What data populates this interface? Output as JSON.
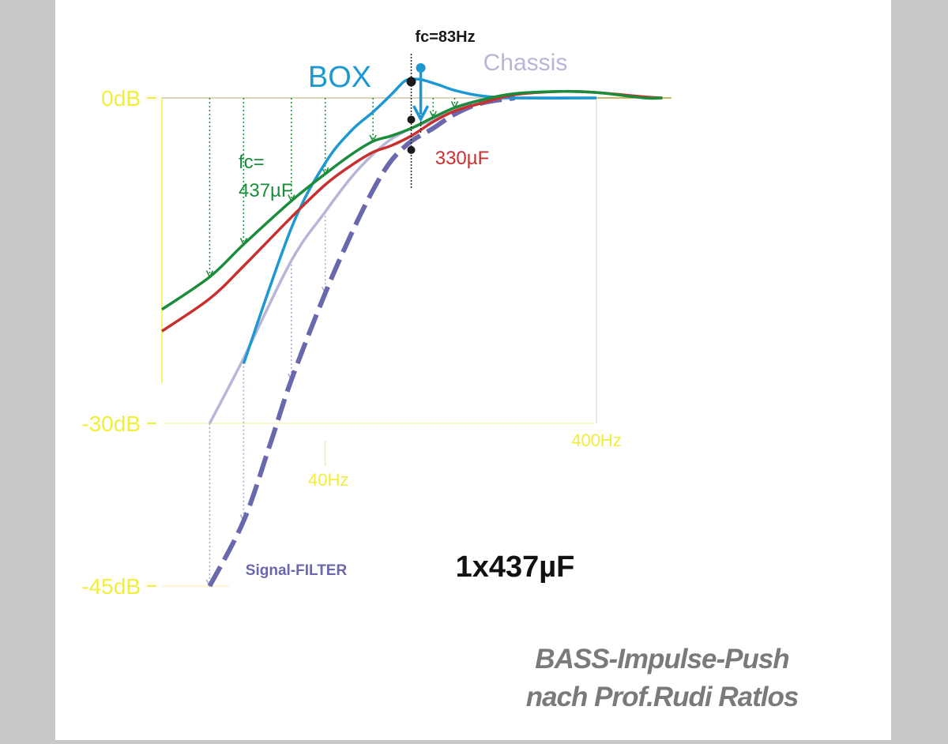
{
  "chart_data": {
    "type": "line",
    "title": "1x437µF",
    "footer": [
      "BASS-Impulse-Push",
      "nach Prof.Rudi Ratlos"
    ],
    "x_scale": "log",
    "xlim_hz": [
      10,
      400
    ],
    "ylim_db": [
      -45,
      0
    ],
    "y_ticks": [
      {
        "value": 0,
        "label": "0dB"
      },
      {
        "value": -30,
        "label": "-30dB"
      },
      {
        "value": -45,
        "label": "-45dB"
      }
    ],
    "x_ticks": [
      {
        "value": 40,
        "label": "40Hz"
      },
      {
        "value": 400,
        "label": "400Hz"
      }
    ],
    "series": [
      {
        "id": "box",
        "name": "BOX",
        "color": "#1e98d2",
        "style": "solid",
        "points": [
          [
            20,
            -24.5
          ],
          [
            30,
            -12
          ],
          [
            40,
            -6
          ],
          [
            50,
            -3
          ],
          [
            60,
            -1.3
          ],
          [
            70,
            0.3
          ],
          [
            78,
            1.5
          ],
          [
            83,
            1.7
          ],
          [
            90,
            1.7
          ],
          [
            105,
            1.2
          ],
          [
            120,
            0.7
          ],
          [
            150,
            0.2
          ],
          [
            200,
            0
          ],
          [
            400,
            0
          ]
        ]
      },
      {
        "id": "chassis",
        "name": "Chassis",
        "color": "#b8b6d6",
        "style": "solid",
        "points": [
          [
            15,
            -30
          ],
          [
            20,
            -24
          ],
          [
            30,
            -15
          ],
          [
            40,
            -10.5
          ],
          [
            50,
            -7.3
          ],
          [
            60,
            -5.2
          ],
          [
            70,
            -3.8
          ],
          [
            83,
            -2.8
          ],
          [
            100,
            -2
          ],
          [
            120,
            -1.2
          ],
          [
            150,
            -0.4
          ],
          [
            200,
            0
          ],
          [
            400,
            0
          ]
        ]
      },
      {
        "id": "filter",
        "name": "Signal-FILTER",
        "color": "#6a68ac",
        "style": "dashed",
        "points": [
          [
            15,
            -45
          ],
          [
            20,
            -39
          ],
          [
            25,
            -32
          ],
          [
            30,
            -26
          ],
          [
            40,
            -18
          ],
          [
            50,
            -12.5
          ],
          [
            60,
            -8.5
          ],
          [
            70,
            -5.8
          ],
          [
            83,
            -4
          ],
          [
            100,
            -2.8
          ],
          [
            120,
            -1.5
          ],
          [
            150,
            -0.5
          ],
          [
            200,
            0
          ]
        ]
      },
      {
        "id": "cap330",
        "name": "330µF",
        "color": "#c83030",
        "style": "solid",
        "points": [
          [
            10,
            -21.5
          ],
          [
            15,
            -18.5
          ],
          [
            20,
            -15.5
          ],
          [
            30,
            -11
          ],
          [
            40,
            -8
          ],
          [
            50,
            -6.2
          ],
          [
            60,
            -5
          ],
          [
            70,
            -4.4
          ],
          [
            83,
            -3.5
          ],
          [
            100,
            -2.2
          ],
          [
            120,
            -1.2
          ],
          [
            150,
            -0.5
          ],
          [
            200,
            0.3
          ],
          [
            300,
            0.6
          ],
          [
            400,
            0.5
          ],
          [
            600,
            0.1
          ],
          [
            700,
            0
          ]
        ]
      },
      {
        "id": "cap437",
        "name": "fc= 437µF",
        "color": "#1a8c3c",
        "style": "solid",
        "points": [
          [
            10,
            -19.5
          ],
          [
            15,
            -16.5
          ],
          [
            20,
            -13.5
          ],
          [
            30,
            -9.5
          ],
          [
            40,
            -7
          ],
          [
            50,
            -5.2
          ],
          [
            60,
            -4
          ],
          [
            70,
            -3.5
          ],
          [
            83,
            -2.8
          ],
          [
            100,
            -1.8
          ],
          [
            120,
            -0.9
          ],
          [
            150,
            -0.2
          ],
          [
            200,
            0.4
          ],
          [
            300,
            0.6
          ],
          [
            400,
            0.5
          ],
          [
            600,
            0
          ],
          [
            700,
            0
          ]
        ]
      }
    ],
    "fc_marker": {
      "label": "fc=83Hz",
      "x_hz": 83
    },
    "arrows_green_hz": [
      15,
      20,
      30,
      40,
      60,
      100,
      120
    ],
    "arrows_gray_hz": [
      15,
      20,
      30,
      40
    ],
    "colors": {
      "axis": "#f2ee3c",
      "background": "#ffffff",
      "frame": "#c8c8c8"
    }
  }
}
